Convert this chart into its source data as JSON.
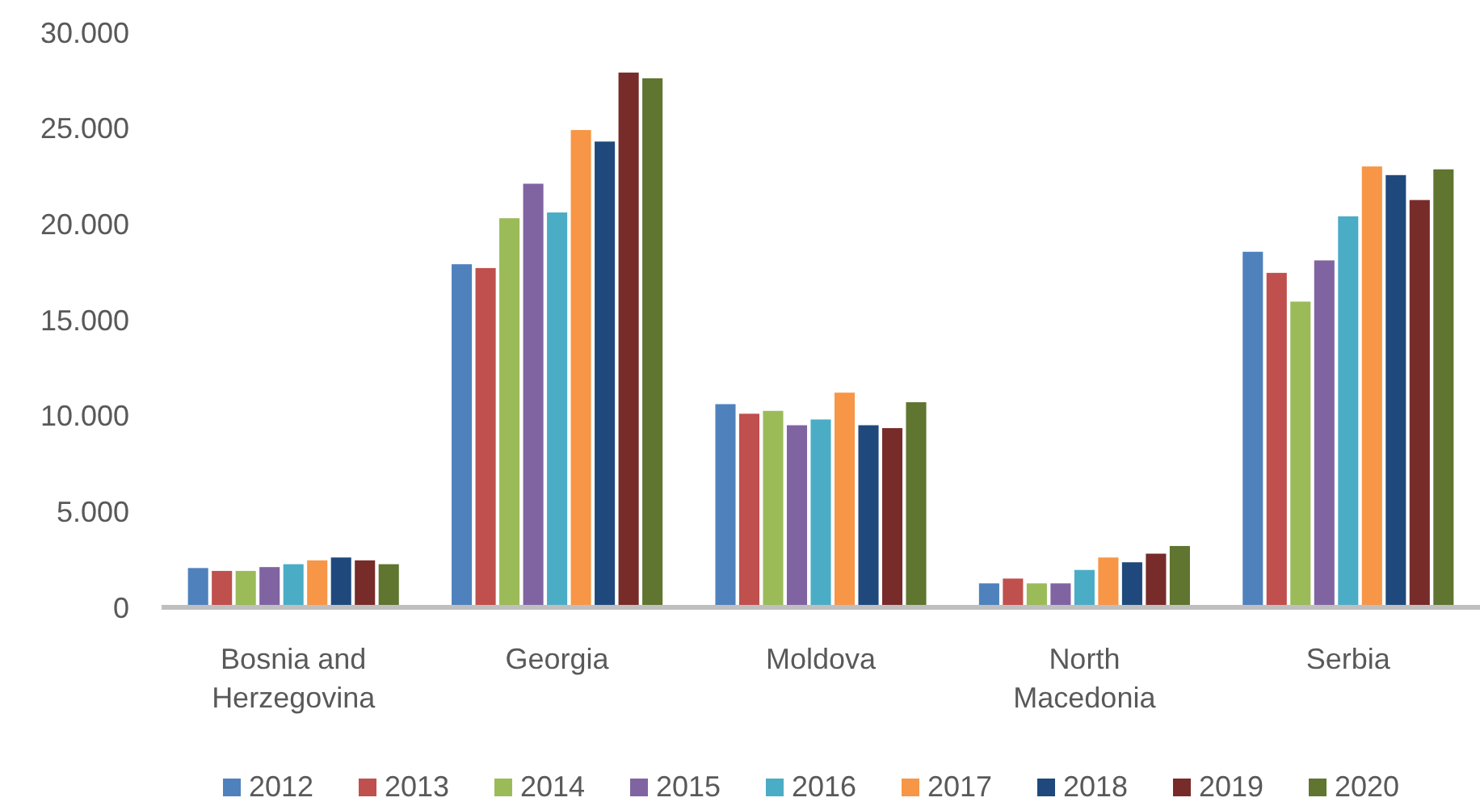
{
  "chart_data": {
    "type": "bar",
    "categories": [
      "Bosnia and Herzegovina",
      "Georgia",
      "Moldova",
      "North Macedonia",
      "Serbia"
    ],
    "series": [
      {
        "name": "2012",
        "color": "#4f81bd",
        "values": [
          2050,
          17900,
          10600,
          1250,
          18550
        ]
      },
      {
        "name": "2013",
        "color": "#c0504d",
        "values": [
          1900,
          17700,
          10100,
          1500,
          17450
        ]
      },
      {
        "name": "2014",
        "color": "#9bbb59",
        "values": [
          1900,
          20300,
          10250,
          1250,
          15950
        ]
      },
      {
        "name": "2015",
        "color": "#8064a2",
        "values": [
          2100,
          22100,
          9500,
          1250,
          18100
        ]
      },
      {
        "name": "2016",
        "color": "#4bacc6",
        "values": [
          2250,
          20600,
          9800,
          1950,
          20400
        ]
      },
      {
        "name": "2017",
        "color": "#f79646",
        "values": [
          2450,
          24900,
          11200,
          2600,
          23000
        ]
      },
      {
        "name": "2018",
        "color": "#1f497d",
        "values": [
          2600,
          24300,
          9500,
          2350,
          22550
        ]
      },
      {
        "name": "2019",
        "color": "#772c2a",
        "values": [
          2450,
          27900,
          9350,
          2800,
          21250
        ]
      },
      {
        "name": "2020",
        "color": "#5f7530",
        "values": [
          2250,
          27600,
          10700,
          3200,
          22850
        ]
      }
    ],
    "ylim": [
      0,
      30000
    ],
    "yticks": [
      {
        "value": 0,
        "label": "0"
      },
      {
        "value": 5000,
        "label": "5.000"
      },
      {
        "value": 10000,
        "label": "10.000"
      },
      {
        "value": 15000,
        "label": "15.000"
      },
      {
        "value": 20000,
        "label": "20.000"
      },
      {
        "value": 25000,
        "label": "25.000"
      },
      {
        "value": 30000,
        "label": "30.000"
      }
    ],
    "legend": "bottom"
  }
}
